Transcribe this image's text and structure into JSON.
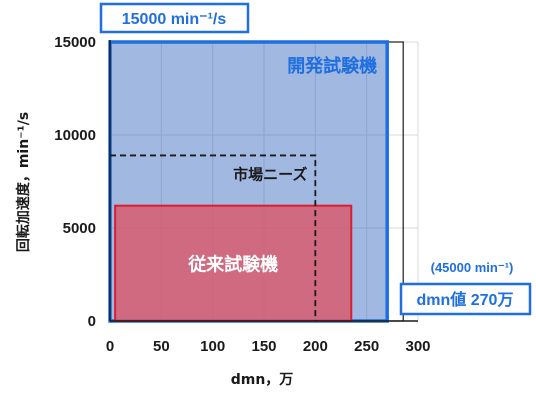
{
  "chart_data": {
    "type": "area",
    "xlabel": "dmn，万",
    "ylabel": "回転加速度，min⁻¹/s",
    "xlim": [
      0,
      300
    ],
    "ylim": [
      0,
      15000
    ],
    "x_ticks": [
      0,
      50,
      100,
      150,
      200,
      250,
      300
    ],
    "y_ticks": [
      0,
      5000,
      10000,
      15000
    ],
    "grid": true,
    "regions": [
      {
        "name": "開発試験機",
        "x": [
          0,
          270
        ],
        "y": [
          0,
          15000
        ],
        "fill": "#4472c4",
        "stroke": "#1f6fe0"
      },
      {
        "name": "従来試験機",
        "x": [
          5,
          235
        ],
        "y": [
          0,
          6200
        ],
        "fill": "#e05060",
        "stroke": "#d62030"
      },
      {
        "name": "市場ニーズ",
        "x": [
          0,
          200
        ],
        "y": [
          0,
          8900
        ],
        "style": "dashed"
      }
    ],
    "annotations": {
      "top_box": "15000 min⁻¹/s",
      "right_note": "(45000 min⁻¹)",
      "right_box": "dmn値 270万"
    },
    "colors": {
      "accent_blue": "#1f6fe0",
      "blue_fill": "#4472c4",
      "red_fill": "#e05060",
      "red_stroke": "#d62030"
    }
  }
}
